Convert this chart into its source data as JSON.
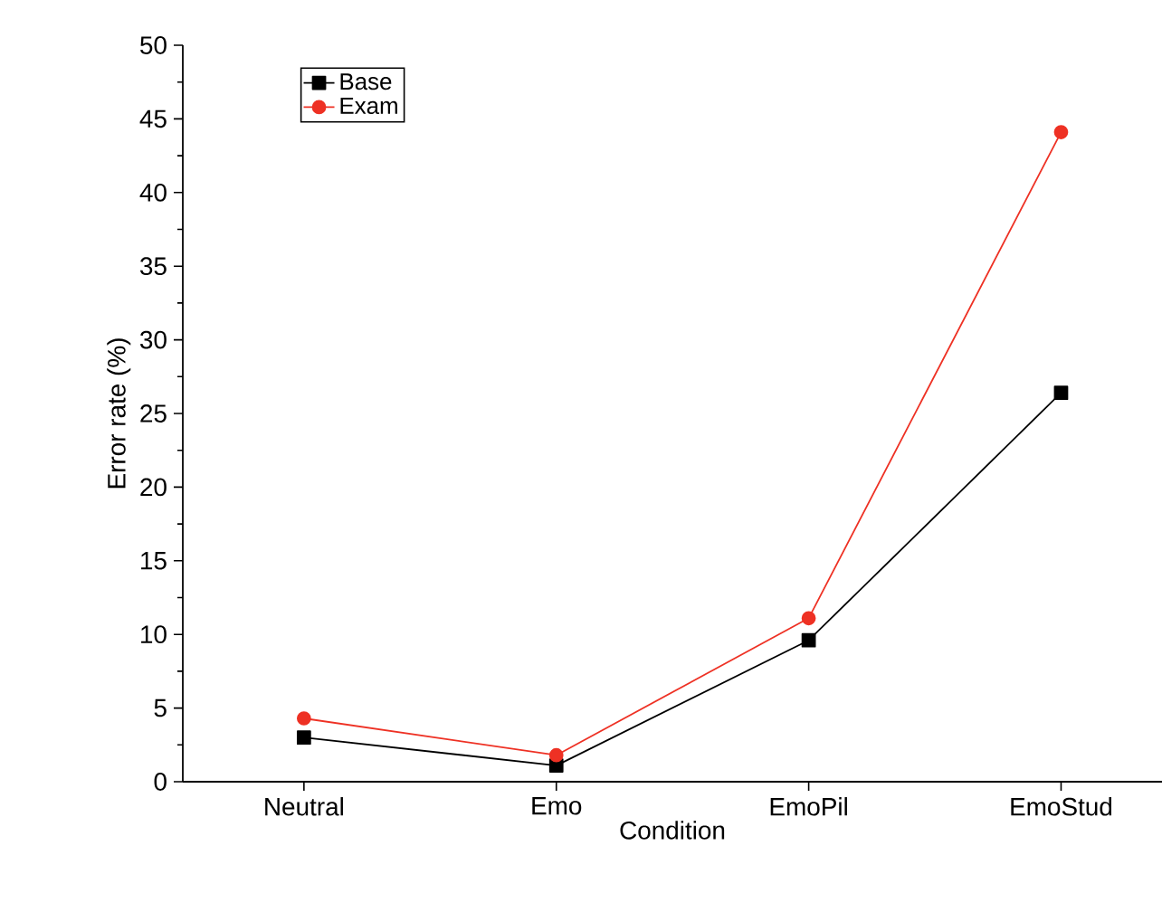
{
  "chart_data": {
    "type": "line",
    "xlabel": "Condition",
    "ylabel": "Error rate (%)",
    "categories": [
      "Neutral",
      "Emo",
      "EmoPil",
      "EmoStud"
    ],
    "series": [
      {
        "name": "Base",
        "color": "#000000",
        "marker": "square",
        "values": [
          3.0,
          1.1,
          9.6,
          26.4
        ]
      },
      {
        "name": "Exam",
        "color": "#ee3124",
        "marker": "circle",
        "values": [
          4.3,
          1.8,
          11.1,
          44.1
        ]
      }
    ],
    "ylim": [
      0,
      50
    ],
    "yticks": [
      0,
      5,
      10,
      15,
      20,
      25,
      30,
      35,
      40,
      45,
      50
    ],
    "legend": "top left",
    "grid": false,
    "line_style": "solid"
  }
}
